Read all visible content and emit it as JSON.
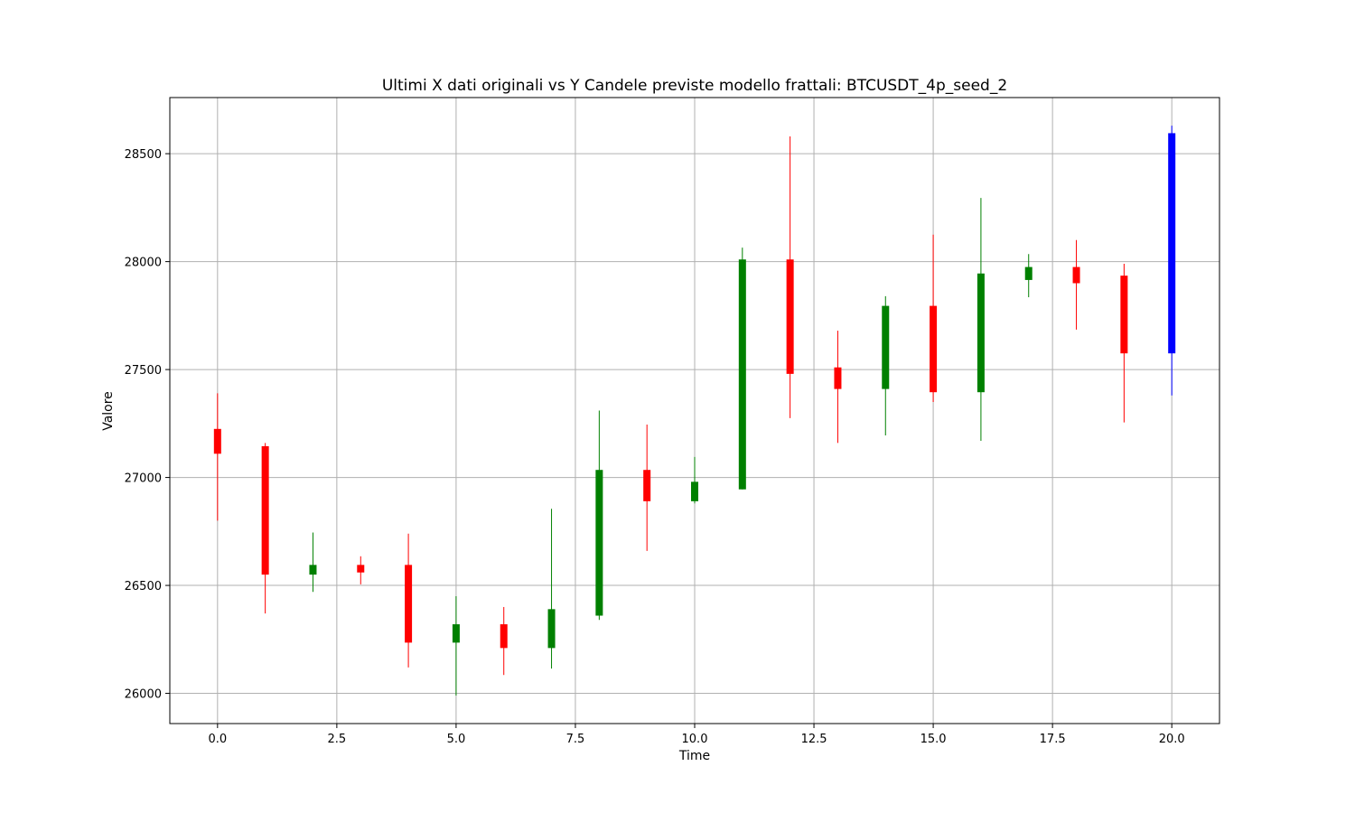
{
  "chart_data": {
    "type": "candlestick",
    "title": "Ultimi X dati originali vs Y Candele previste modello frattali: BTCUSDT_4p_seed_2",
    "xlabel": "Time",
    "ylabel": "Valore",
    "xlim": [
      -1,
      21
    ],
    "ylim": [
      25860,
      28760
    ],
    "x_ticks": [
      0.0,
      2.5,
      5.0,
      7.5,
      10.0,
      12.5,
      15.0,
      17.5,
      20.0
    ],
    "x_tick_labels": [
      "0.0",
      "2.5",
      "5.0",
      "7.5",
      "10.0",
      "12.5",
      "15.0",
      "17.5",
      "20.0"
    ],
    "y_ticks": [
      26000,
      26500,
      27000,
      27500,
      28000,
      28500
    ],
    "y_tick_labels": [
      "26000",
      "26500",
      "27000",
      "27500",
      "28000",
      "28500"
    ],
    "grid": true,
    "colors": {
      "up": "#008000",
      "down": "#ff0000",
      "predicted": "#0000ff"
    },
    "candles": [
      {
        "x": 0,
        "open": 27225,
        "high": 27390,
        "low": 26800,
        "close": 27110,
        "kind": "down"
      },
      {
        "x": 1,
        "open": 27145,
        "high": 27160,
        "low": 26370,
        "close": 26550,
        "kind": "down"
      },
      {
        "x": 2,
        "open": 26550,
        "high": 26745,
        "low": 26470,
        "close": 26595,
        "kind": "up"
      },
      {
        "x": 3,
        "open": 26595,
        "high": 26635,
        "low": 26505,
        "close": 26560,
        "kind": "down"
      },
      {
        "x": 4,
        "open": 26595,
        "high": 26740,
        "low": 26120,
        "close": 26235,
        "kind": "down"
      },
      {
        "x": 5,
        "open": 26235,
        "high": 26450,
        "low": 25990,
        "close": 26320,
        "kind": "up"
      },
      {
        "x": 6,
        "open": 26320,
        "high": 26400,
        "low": 26085,
        "close": 26210,
        "kind": "down"
      },
      {
        "x": 7,
        "open": 26210,
        "high": 26855,
        "low": 26115,
        "close": 26390,
        "kind": "up"
      },
      {
        "x": 8,
        "open": 26360,
        "high": 27310,
        "low": 26340,
        "close": 27035,
        "kind": "up"
      },
      {
        "x": 9,
        "open": 27035,
        "high": 27245,
        "low": 26660,
        "close": 26890,
        "kind": "down"
      },
      {
        "x": 10,
        "open": 26890,
        "high": 27095,
        "low": 26880,
        "close": 26980,
        "kind": "up"
      },
      {
        "x": 11,
        "open": 26945,
        "high": 28065,
        "low": 26945,
        "close": 28010,
        "kind": "up"
      },
      {
        "x": 12,
        "open": 28010,
        "high": 28580,
        "low": 27275,
        "close": 27480,
        "kind": "down"
      },
      {
        "x": 13,
        "open": 27510,
        "high": 27680,
        "low": 27160,
        "close": 27410,
        "kind": "down"
      },
      {
        "x": 14,
        "open": 27410,
        "high": 27840,
        "low": 27195,
        "close": 27795,
        "kind": "up"
      },
      {
        "x": 15,
        "open": 27795,
        "high": 28125,
        "low": 27350,
        "close": 27395,
        "kind": "down"
      },
      {
        "x": 16,
        "open": 27395,
        "high": 28295,
        "low": 27170,
        "close": 27945,
        "kind": "up"
      },
      {
        "x": 17,
        "open": 27915,
        "high": 28035,
        "low": 27835,
        "close": 27975,
        "kind": "up"
      },
      {
        "x": 18,
        "open": 27975,
        "high": 28100,
        "low": 27685,
        "close": 27900,
        "kind": "down"
      },
      {
        "x": 19,
        "open": 27935,
        "high": 27990,
        "low": 27255,
        "close": 27575,
        "kind": "down"
      },
      {
        "x": 20,
        "open": 27575,
        "high": 28630,
        "low": 27380,
        "close": 28595,
        "kind": "predicted"
      }
    ]
  }
}
